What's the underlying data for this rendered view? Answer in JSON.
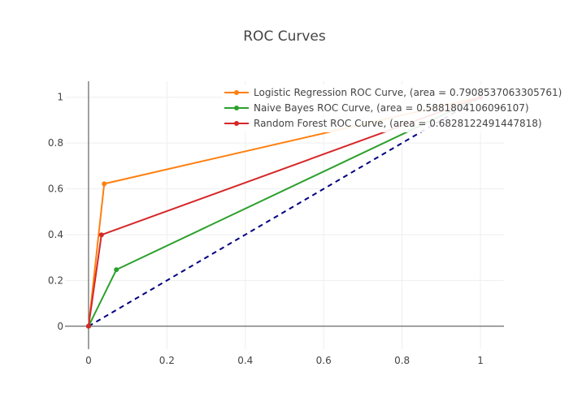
{
  "chart_data": {
    "type": "line",
    "title": "ROC Curves",
    "xlabel": "",
    "ylabel": "",
    "xlim": [
      -0.06,
      1.06
    ],
    "ylim": [
      -0.1,
      1.07
    ],
    "x_ticks": [
      {
        "value": 0,
        "label": "0"
      },
      {
        "value": 0.2,
        "label": "0.2"
      },
      {
        "value": 0.4,
        "label": "0.4"
      },
      {
        "value": 0.6,
        "label": "0.6"
      },
      {
        "value": 0.8,
        "label": "0.8"
      },
      {
        "value": 1,
        "label": "1"
      }
    ],
    "y_ticks": [
      {
        "value": 0,
        "label": "0"
      },
      {
        "value": 0.2,
        "label": "0.2"
      },
      {
        "value": 0.4,
        "label": "0.4"
      },
      {
        "value": 0.6,
        "label": "0.6"
      },
      {
        "value": 0.8,
        "label": "0.8"
      },
      {
        "value": 1,
        "label": "1"
      }
    ],
    "grid": true,
    "legend_position": "top-right",
    "series": [
      {
        "name": "Logistic Regression ROC Curve, (area = 0.7908537063305761)",
        "color": "#ff7f0e",
        "x": [
          0,
          0.04,
          1
        ],
        "y": [
          0,
          0.622,
          1
        ],
        "markers": true,
        "dash": false
      },
      {
        "name": "Naive Bayes ROC Curve, (area = 0.5881804106096107)",
        "color": "#2ca02c",
        "x": [
          0,
          0.071,
          1
        ],
        "y": [
          0,
          0.247,
          1
        ],
        "markers": true,
        "dash": false
      },
      {
        "name": "Random Forest ROC Curve, (area = 0.6828122491447818)",
        "color": "#d62728",
        "x": [
          0,
          0.033,
          1
        ],
        "y": [
          0,
          0.399,
          1
        ],
        "markers": true,
        "dash": false
      }
    ],
    "reference_line": {
      "x": [
        0,
        1
      ],
      "y": [
        0,
        1
      ],
      "color": "#000080",
      "dash": true
    }
  }
}
